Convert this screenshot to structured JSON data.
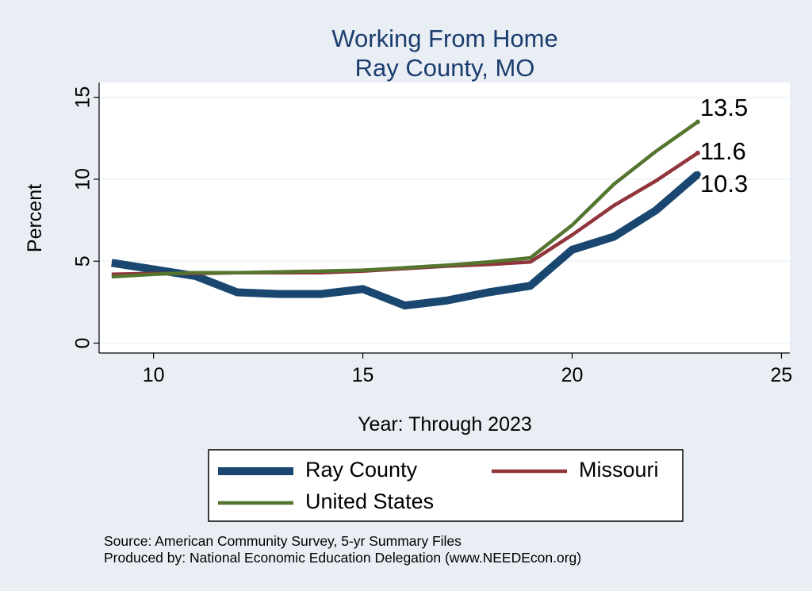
{
  "chart_data": {
    "type": "line",
    "title": [
      "Working From Home",
      "Ray County, MO"
    ],
    "xlabel": "Year: Through 2023",
    "ylabel": "Percent",
    "xlim": [
      8.7,
      25.2
    ],
    "ylim": [
      -0.6,
      15.9
    ],
    "x_ticks": [
      10,
      15,
      20,
      25
    ],
    "y_ticks": [
      0,
      5,
      10,
      15
    ],
    "grid": true,
    "legend_position": "bottom",
    "x": [
      9,
      10,
      11,
      12,
      13,
      14,
      15,
      16,
      17,
      18,
      19,
      20,
      21,
      22,
      23
    ],
    "series": [
      {
        "name": "Ray County",
        "color": "#1a476f",
        "values": [
          4.9,
          4.5,
          4.1,
          3.1,
          3.0,
          3.0,
          3.3,
          2.3,
          2.6,
          3.1,
          3.5,
          5.7,
          6.5,
          8.1,
          10.3
        ],
        "end_label": "10.3"
      },
      {
        "name": "Missouri",
        "color": "#90353b",
        "values": [
          4.2,
          4.25,
          4.25,
          4.3,
          4.3,
          4.3,
          4.4,
          4.55,
          4.7,
          4.8,
          4.95,
          6.6,
          8.4,
          9.9,
          11.6
        ],
        "end_label": "11.6"
      },
      {
        "name": "United States",
        "color": "#55752f",
        "values": [
          4.05,
          4.2,
          4.3,
          4.3,
          4.35,
          4.4,
          4.45,
          4.6,
          4.75,
          4.95,
          5.2,
          7.2,
          9.7,
          11.7,
          13.5
        ],
        "end_label": "13.5"
      }
    ],
    "notes": [
      "Source: American Community Survey, 5-yr Summary Files",
      "Produced by: National Economic Education Delegation (www.NEEDEcon.org)"
    ]
  }
}
